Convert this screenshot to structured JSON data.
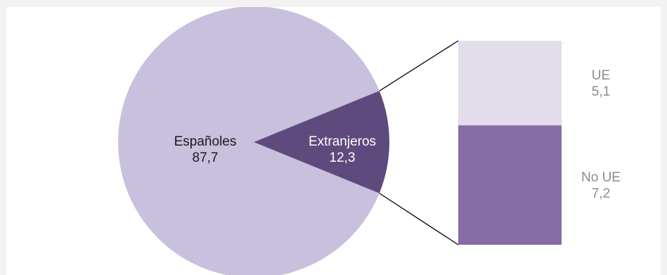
{
  "chart_data": {
    "type": "bar-of-pie",
    "pie": {
      "slices": [
        {
          "label": "Españoles",
          "value": 87.7,
          "value_text": "87,7",
          "color": "#c8c0dc"
        },
        {
          "label": "Extranjeros",
          "value": 12.3,
          "value_text": "12,3",
          "color": "#5e4a7c"
        }
      ]
    },
    "breakdown": {
      "of": "Extranjeros",
      "segments": [
        {
          "label": "UE",
          "value": 5.1,
          "value_text": "5,1",
          "color": "#e2dceb"
        },
        {
          "label": "No UE",
          "value": 7.2,
          "value_text": "7,2",
          "color": "#856ca5"
        }
      ]
    },
    "text_colors": {
      "dark": "#1a1a1a",
      "light": "#ffffff",
      "muted": "#8c8c8c"
    },
    "connector_color": "#000000"
  }
}
